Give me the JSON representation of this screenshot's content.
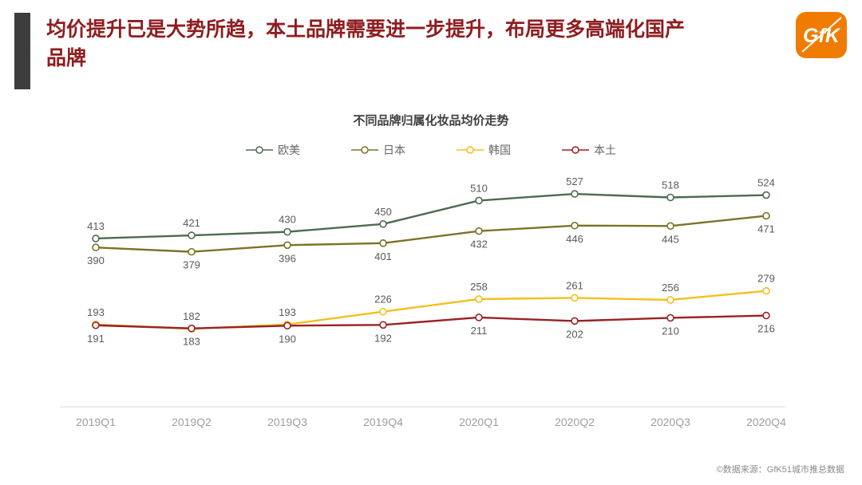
{
  "slide": {
    "title": "均价提升已是大势所趋，本土品牌需要进一步提升，布局更多高端化国产品牌",
    "logo_text": "GfK",
    "source": "©数据来源：GfK51城市推总数据"
  },
  "chart_data": {
    "type": "line",
    "title": "不同品牌归属化妆品均价走势",
    "xlabel": "",
    "ylabel": "",
    "categories": [
      "2019Q1",
      "2019Q2",
      "2019Q3",
      "2019Q4",
      "2020Q1",
      "2020Q2",
      "2020Q3",
      "2020Q4"
    ],
    "series": [
      {
        "name": "欧美",
        "color": "#4c6b53",
        "label_position": "above",
        "values": [
          413,
          421,
          430,
          450,
          510,
          527,
          518,
          524
        ]
      },
      {
        "name": "日本",
        "color": "#7d7226",
        "label_position": "below",
        "values": [
          390,
          379,
          396,
          401,
          432,
          446,
          445,
          471
        ]
      },
      {
        "name": "韩国",
        "color": "#f2c01e",
        "label_position": "above",
        "values": [
          193,
          182,
          193,
          226,
          258,
          261,
          256,
          279
        ]
      },
      {
        "name": "本土",
        "color": "#9c2123",
        "label_position": "below",
        "values": [
          191,
          183,
          190,
          192,
          211,
          202,
          210,
          216
        ]
      }
    ],
    "ylim": [
      60,
      570
    ],
    "grid": false,
    "legend_position": "top",
    "marker": "open-circle",
    "axis_line_color": "#dcdcdc",
    "label_color": "#595959",
    "tick_color": "#9e9e9e"
  }
}
